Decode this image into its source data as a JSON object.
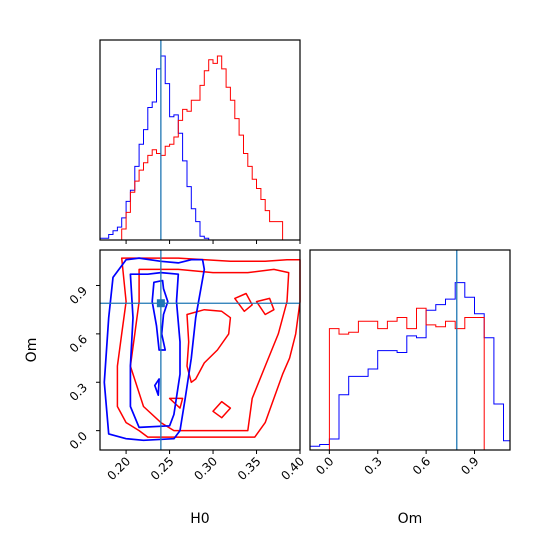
{
  "chart_data": {
    "type": "corner",
    "parameters": [
      "H0",
      "Om"
    ],
    "truth": {
      "H0": 0.24,
      "Om": 0.79
    },
    "colors": {
      "blue": "#0000ff",
      "red": "#ff0000",
      "truth": "#1f77b4"
    },
    "axes": {
      "H0": {
        "label": "H0",
        "range": [
          0.17,
          0.4
        ],
        "ticks": [
          0.2,
          0.25,
          0.3,
          0.35,
          0.4
        ],
        "tick_labels": [
          "0.20",
          "0.25",
          "0.30",
          "0.35",
          "0.40"
        ]
      },
      "Om": {
        "label": "Om",
        "range": [
          -0.12,
          1.12
        ],
        "ticks": [
          0.0,
          0.3,
          0.6,
          0.9
        ],
        "tick_labels": [
          "0.0",
          "0.3",
          "0.6",
          "0.9"
        ]
      }
    },
    "hist_H0": {
      "edges": [
        0.17,
        0.175,
        0.18,
        0.185,
        0.19,
        0.195,
        0.2,
        0.205,
        0.21,
        0.215,
        0.22,
        0.225,
        0.23,
        0.235,
        0.24,
        0.245,
        0.25,
        0.255,
        0.26,
        0.265,
        0.27,
        0.275,
        0.28,
        0.285,
        0.29,
        0.295,
        0.3,
        0.305,
        0.31,
        0.315,
        0.32,
        0.325,
        0.33,
        0.335,
        0.34,
        0.345,
        0.35,
        0.355,
        0.36,
        0.365,
        0.37,
        0.375,
        0.38,
        0.385,
        0.39,
        0.395,
        0.4
      ],
      "blue": [
        0.01,
        0.01,
        0.03,
        0.05,
        0.07,
        0.12,
        0.21,
        0.27,
        0.4,
        0.52,
        0.6,
        0.72,
        0.75,
        0.93,
        1.0,
        0.85,
        0.67,
        0.68,
        0.58,
        0.43,
        0.29,
        0.17,
        0.1,
        0.02,
        0.01,
        0.0,
        0.0,
        0.0,
        0.0,
        0.0,
        0.0,
        0.0,
        0.0,
        0.0,
        0.0,
        0.0,
        0.0,
        0.0,
        0.0,
        0.0,
        0.0,
        0.0,
        0.0,
        0.0,
        0.0,
        0.0
      ],
      "red": [
        0.0,
        0.0,
        0.0,
        0.0,
        0.0,
        0.06,
        0.15,
        0.26,
        0.32,
        0.38,
        0.42,
        0.46,
        0.49,
        0.47,
        0.46,
        0.51,
        0.52,
        0.56,
        0.65,
        0.71,
        0.7,
        0.76,
        0.76,
        0.84,
        0.92,
        0.98,
        0.96,
        1.0,
        0.93,
        0.83,
        0.76,
        0.66,
        0.57,
        0.47,
        0.4,
        0.33,
        0.28,
        0.22,
        0.16,
        0.1,
        0.1,
        0.1,
        0.0,
        0.0,
        0.0,
        0.0
      ]
    },
    "hist_Om": {
      "edges": [
        -0.12,
        -0.06,
        0.0,
        0.06,
        0.12,
        0.18,
        0.24,
        0.3,
        0.36,
        0.42,
        0.48,
        0.54,
        0.6,
        0.66,
        0.72,
        0.78,
        0.84,
        0.9,
        0.96,
        1.02,
        1.08,
        1.12
      ],
      "blue": [
        0.02,
        0.03,
        0.06,
        0.3,
        0.4,
        0.4,
        0.44,
        0.54,
        0.54,
        0.53,
        0.62,
        0.61,
        0.76,
        0.79,
        0.82,
        0.91,
        0.83,
        0.74,
        0.61,
        0.25,
        0.05
      ],
      "red": [
        0.0,
        0.0,
        0.66,
        0.63,
        0.64,
        0.7,
        0.7,
        0.66,
        0.7,
        0.72,
        0.66,
        0.77,
        0.68,
        0.67,
        0.7,
        0.66,
        0.72,
        0.72,
        0.0,
        0.0,
        0.0
      ]
    },
    "contours": {
      "blue": [
        [
          [
            0.2,
            1.06
          ],
          [
            0.215,
            1.07
          ],
          [
            0.24,
            1.05
          ],
          [
            0.26,
            1.04
          ],
          [
            0.275,
            1.06
          ],
          [
            0.288,
            1.06
          ],
          [
            0.29,
            1.0
          ],
          [
            0.28,
            0.7
          ],
          [
            0.275,
            0.45
          ],
          [
            0.268,
            0.2
          ],
          [
            0.262,
            0.0
          ],
          [
            0.255,
            -0.05
          ],
          [
            0.22,
            -0.06
          ],
          [
            0.2,
            -0.05
          ],
          [
            0.18,
            -0.02
          ],
          [
            0.175,
            0.3
          ],
          [
            0.18,
            0.7
          ],
          [
            0.185,
            0.95
          ],
          [
            0.2,
            1.06
          ]
        ],
        [
          [
            0.205,
            0.97
          ],
          [
            0.225,
            0.97
          ],
          [
            0.24,
            0.98
          ],
          [
            0.26,
            0.97
          ],
          [
            0.258,
            0.8
          ],
          [
            0.262,
            0.55
          ],
          [
            0.262,
            0.35
          ],
          [
            0.255,
            0.1
          ],
          [
            0.25,
            0.03
          ],
          [
            0.215,
            0.02
          ],
          [
            0.205,
            0.15
          ],
          [
            0.205,
            0.4
          ],
          [
            0.208,
            0.7
          ],
          [
            0.205,
            0.97
          ]
        ],
        [
          [
            0.232,
            0.92
          ],
          [
            0.242,
            0.93
          ],
          [
            0.243,
            0.88
          ],
          [
            0.248,
            0.8
          ],
          [
            0.243,
            0.72
          ],
          [
            0.241,
            0.6
          ],
          [
            0.245,
            0.5
          ],
          [
            0.238,
            0.5
          ],
          [
            0.235,
            0.65
          ],
          [
            0.23,
            0.8
          ],
          [
            0.232,
            0.92
          ]
        ],
        [
          [
            0.233,
            0.28
          ],
          [
            0.238,
            0.32
          ],
          [
            0.237,
            0.22
          ],
          [
            0.233,
            0.28
          ]
        ]
      ],
      "red": [
        [
          [
            0.195,
            1.07
          ],
          [
            0.26,
            1.07
          ],
          [
            0.32,
            1.05
          ],
          [
            0.36,
            1.05
          ],
          [
            0.385,
            1.06
          ],
          [
            0.4,
            1.06
          ],
          [
            0.4,
            0.8
          ],
          [
            0.395,
            0.6
          ],
          [
            0.388,
            0.45
          ],
          [
            0.38,
            0.35
          ],
          [
            0.37,
            0.2
          ],
          [
            0.36,
            0.05
          ],
          [
            0.348,
            -0.04
          ],
          [
            0.28,
            -0.04
          ],
          [
            0.225,
            -0.04
          ],
          [
            0.215,
            0.0
          ],
          [
            0.2,
            0.05
          ],
          [
            0.19,
            0.15
          ],
          [
            0.19,
            0.4
          ],
          [
            0.195,
            0.6
          ],
          [
            0.2,
            0.8
          ],
          [
            0.195,
            1.07
          ]
        ],
        [
          [
            0.215,
            1.0
          ],
          [
            0.26,
            1.0
          ],
          [
            0.3,
            0.98
          ],
          [
            0.34,
            0.98
          ],
          [
            0.37,
            1.0
          ],
          [
            0.387,
            0.98
          ],
          [
            0.385,
            0.8
          ],
          [
            0.375,
            0.6
          ],
          [
            0.36,
            0.4
          ],
          [
            0.345,
            0.2
          ],
          [
            0.34,
            0.0
          ],
          [
            0.3,
            0.0
          ],
          [
            0.255,
            0.0
          ],
          [
            0.24,
            0.05
          ],
          [
            0.22,
            0.15
          ],
          [
            0.205,
            0.4
          ],
          [
            0.21,
            0.6
          ],
          [
            0.215,
            0.8
          ],
          [
            0.215,
            1.0
          ]
        ],
        [
          [
            0.27,
            0.72
          ],
          [
            0.29,
            0.75
          ],
          [
            0.31,
            0.74
          ],
          [
            0.32,
            0.7
          ],
          [
            0.318,
            0.6
          ],
          [
            0.305,
            0.5
          ],
          [
            0.29,
            0.42
          ],
          [
            0.28,
            0.32
          ],
          [
            0.275,
            0.3
          ],
          [
            0.27,
            0.4
          ],
          [
            0.272,
            0.55
          ],
          [
            0.27,
            0.72
          ]
        ],
        [
          [
            0.325,
            0.82
          ],
          [
            0.338,
            0.85
          ],
          [
            0.345,
            0.78
          ],
          [
            0.336,
            0.74
          ],
          [
            0.325,
            0.82
          ]
        ],
        [
          [
            0.35,
            0.8
          ],
          [
            0.365,
            0.82
          ],
          [
            0.37,
            0.75
          ],
          [
            0.36,
            0.72
          ],
          [
            0.35,
            0.8
          ]
        ],
        [
          [
            0.3,
            0.12
          ],
          [
            0.31,
            0.18
          ],
          [
            0.32,
            0.14
          ],
          [
            0.31,
            0.08
          ],
          [
            0.3,
            0.12
          ]
        ],
        [
          [
            0.25,
            0.2
          ],
          [
            0.265,
            0.2
          ],
          [
            0.262,
            0.14
          ],
          [
            0.25,
            0.2
          ]
        ]
      ]
    }
  }
}
